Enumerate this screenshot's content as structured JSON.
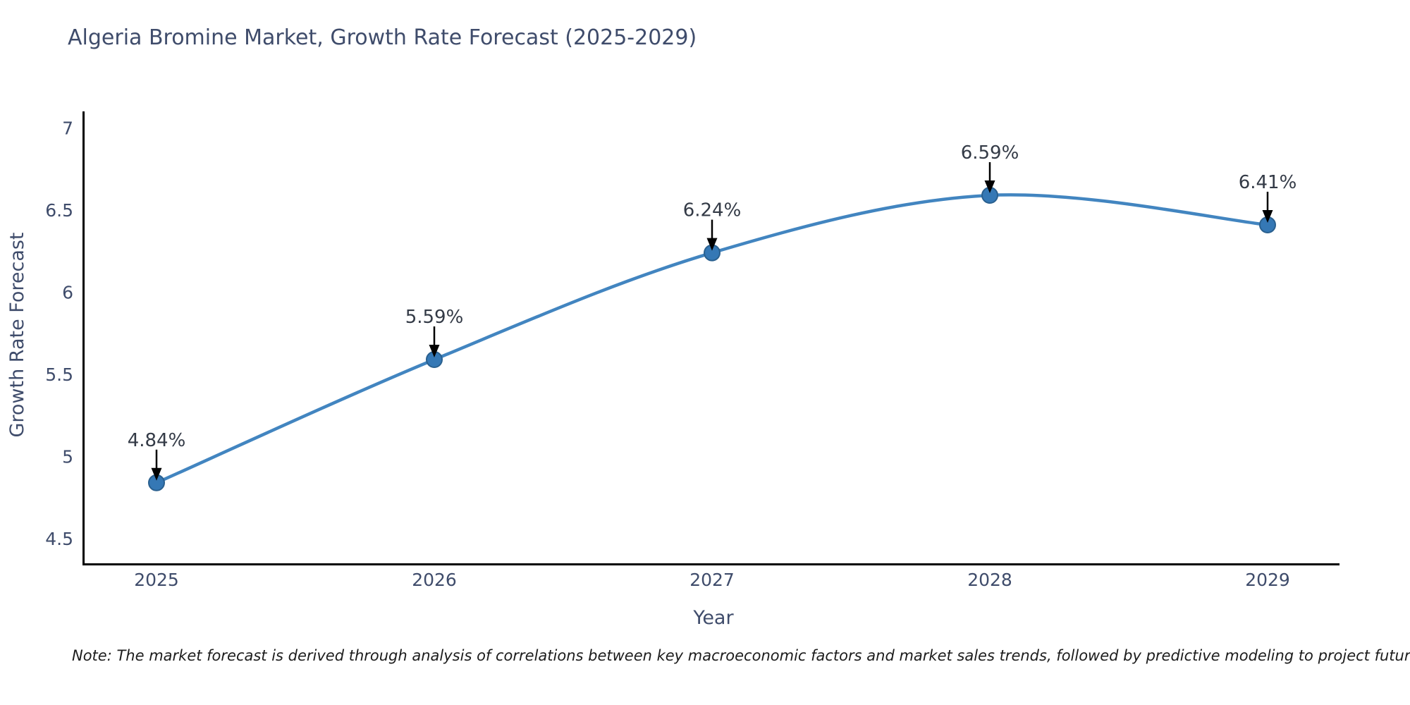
{
  "note": "Note: The market forecast is derived through analysis of correlations between key macroeconomic factors and market sales trends, followed by predictive modeling to project future sales",
  "chart_data": {
    "type": "line",
    "title": "Algeria Bromine Market, Growth Rate Forecast (2025-2029)",
    "xlabel": "Year",
    "ylabel": "Growth Rate Forecast",
    "x": [
      2025,
      2026,
      2027,
      2028,
      2029
    ],
    "x_tick_labels": [
      "2025",
      "2026",
      "2027",
      "2028",
      "2029"
    ],
    "series": [
      {
        "name": "Growth Rate Forecast",
        "values": [
          4.84,
          5.59,
          6.24,
          6.59,
          6.41
        ],
        "point_labels": [
          "4.84%",
          "5.59%",
          "6.24%",
          "6.59%",
          "6.41%"
        ]
      }
    ],
    "y_ticks": [
      7,
      6.5,
      6,
      5.5,
      5,
      4.5
    ],
    "ylim": [
      4.34,
      7.15
    ],
    "xlim": [
      2024.74,
      2029.31
    ],
    "grid": false,
    "legend": "none",
    "line_style": "spline",
    "marker": "circle",
    "annotations": "value labels with black down arrows above each point",
    "colors": {
      "line": "#4285c0",
      "marker_fill": "#3578b5",
      "marker_edge": "#2a608f",
      "axis": "#000000",
      "tick_text": "#3f4c6b",
      "title_text": "#3f4c6b",
      "annotation_text": "#333a46",
      "arrow": "#000000",
      "note_text": "#1c1c1c",
      "background": "#ffffff"
    }
  }
}
